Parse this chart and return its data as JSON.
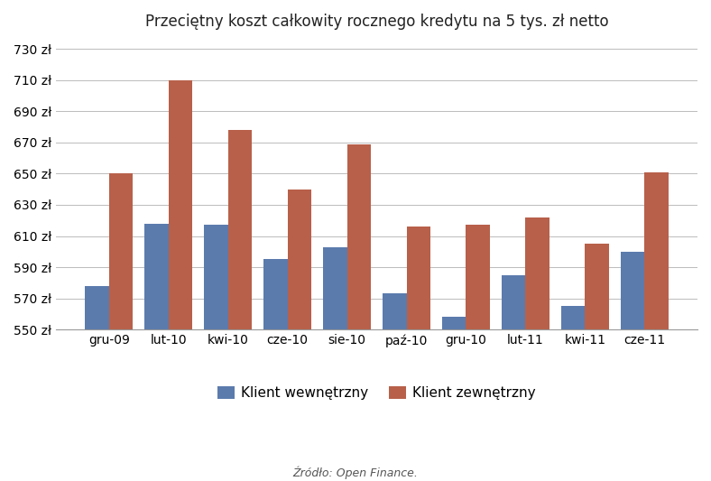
{
  "title": "Przeciętny koszt całkowity rocznego kredytu na 5 tys. zł netto",
  "categories": [
    "gru-09",
    "lut-10",
    "kwi-10",
    "cze-10",
    "sie-10",
    "paź-10",
    "gru-10",
    "lut-11",
    "kwi-11",
    "cze-11"
  ],
  "klient_wewnetrzny": [
    578,
    618,
    617,
    595,
    603,
    573,
    558,
    585,
    565,
    600
  ],
  "klient_zewnetrzny": [
    650,
    710,
    678,
    640,
    669,
    616,
    617,
    622,
    605,
    651
  ],
  "color_wewnetrzny": "#5B7BAD",
  "color_zewnetrzny": "#B8604A",
  "ylim_min": 550,
  "ylim_max": 735,
  "yticks": [
    550,
    570,
    590,
    610,
    630,
    650,
    670,
    690,
    710,
    730
  ],
  "legend_wewnetrzny": "Klient wewnętrzny",
  "legend_zewnetrzny": "Klient zewnętrzny",
  "source_text": "Źródło: Open Finance.",
  "background_color": "#FFFFFF",
  "grid_color": "#BBBBBB"
}
